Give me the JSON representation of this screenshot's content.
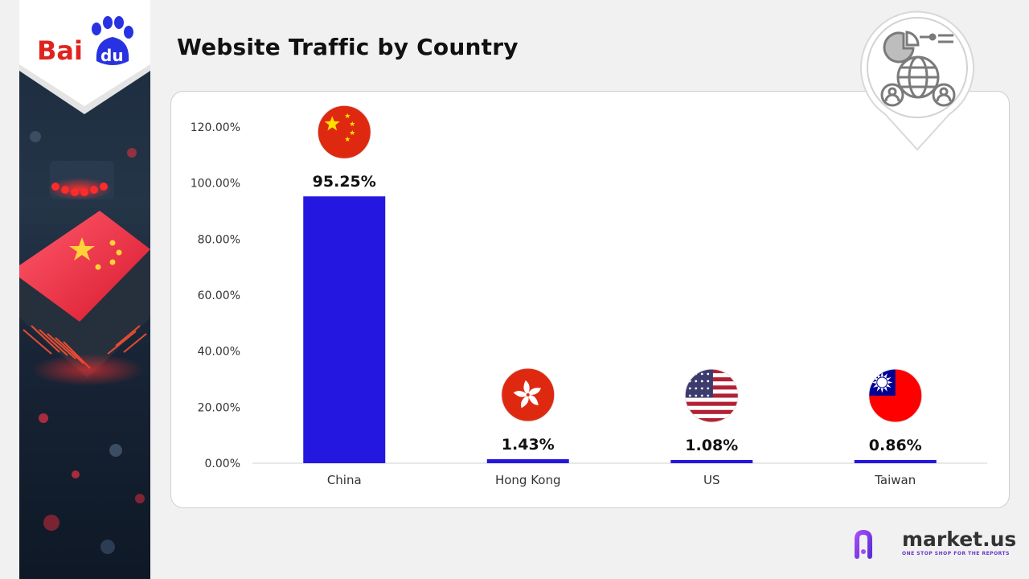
{
  "header": {
    "title": "Website Traffic by Country"
  },
  "logo": {
    "text_left": "Bai",
    "text_right": "du"
  },
  "brand": {
    "name": "market.us",
    "tagline": "ONE STOP SHOP FOR THE REPORTS"
  },
  "colors": {
    "bar": "#2418e0",
    "logo_red": "#e1231e",
    "logo_blue": "#2932e1",
    "brand_purple": "#7a3cf0"
  },
  "chart_data": {
    "type": "bar",
    "title": "Website Traffic by Country",
    "categories": [
      "China",
      "Hong Kong",
      "US",
      "Taiwan"
    ],
    "values": [
      95.25,
      1.43,
      1.08,
      0.86
    ],
    "value_labels": [
      "95.25%",
      "1.43%",
      "1.08%",
      "0.86%"
    ],
    "flags": [
      "china-flag-icon",
      "hong-kong-flag-icon",
      "us-flag-icon",
      "taiwan-flag-icon"
    ],
    "y_ticks": [
      "0.00%",
      "20.00%",
      "40.00%",
      "60.00%",
      "80.00%",
      "100.00%",
      "120.00%"
    ],
    "ylim": [
      0,
      120
    ],
    "xlabel": "",
    "ylabel": "",
    "grid": false,
    "legend": "none"
  }
}
